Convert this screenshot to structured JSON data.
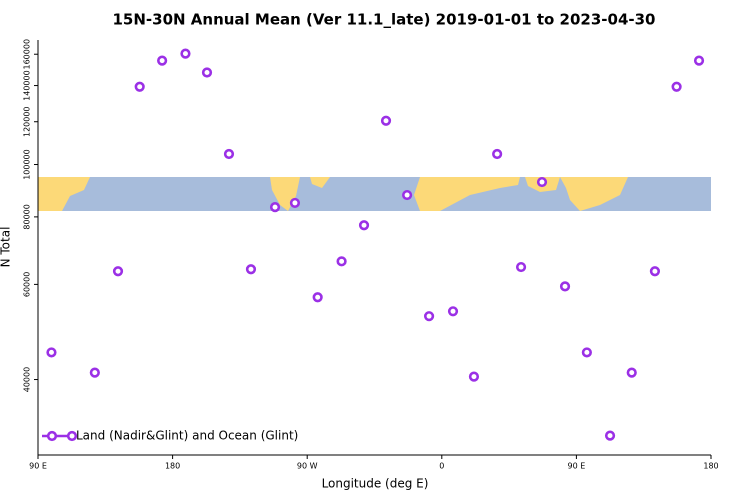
{
  "chart_data": {
    "type": "scatter",
    "title": "15N-30N Annual Mean (Ver 11.1_late)   2019-01-01 to 2023-04-30",
    "x_label": "Longitude (deg E)",
    "y_label": "N Total",
    "xlim": [
      90,
      540
    ],
    "xticks": [
      {
        "value": 90,
        "label": "90 E"
      },
      180,
      {
        "value": 270,
        "label": "90 W"
      },
      {
        "value": 360,
        "label": "0"
      },
      {
        "value": 450,
        "label": "90 E"
      },
      {
        "value": 540,
        "label": "180"
      }
    ],
    "ylim": [
      29000,
      170000
    ],
    "log_y": true,
    "yticks": [
      40000,
      60000,
      80000,
      100000,
      120000,
      140000,
      160000
    ],
    "legend_position": "bottom-left",
    "series": [
      {
        "name": "Land (Nadir&Glint) and Ocean (Glint)",
        "color": "#9b30e6",
        "x": [
          99,
          128,
          143.5,
          158,
          173,
          188.6,
          203,
          217.7,
          232.4,
          248.5,
          261.8,
          277,
          293,
          308,
          322.7,
          336.8,
          351.5,
          367.5,
          381.5,
          397,
          413,
          427,
          442.4,
          457,
          472.5,
          487,
          502.5,
          517,
          532
        ],
        "values": [
          44900,
          41200,
          63460,
          139300,
          155700,
          160400,
          148000,
          104600,
          64000,
          83400,
          84900,
          56800,
          66200,
          77200,
          120500,
          87800,
          52400,
          53500,
          40500,
          104600,
          64600,
          92800,
          59500,
          44900,
          31500,
          41200,
          63460,
          139300,
          155700
        ]
      }
    ]
  }
}
